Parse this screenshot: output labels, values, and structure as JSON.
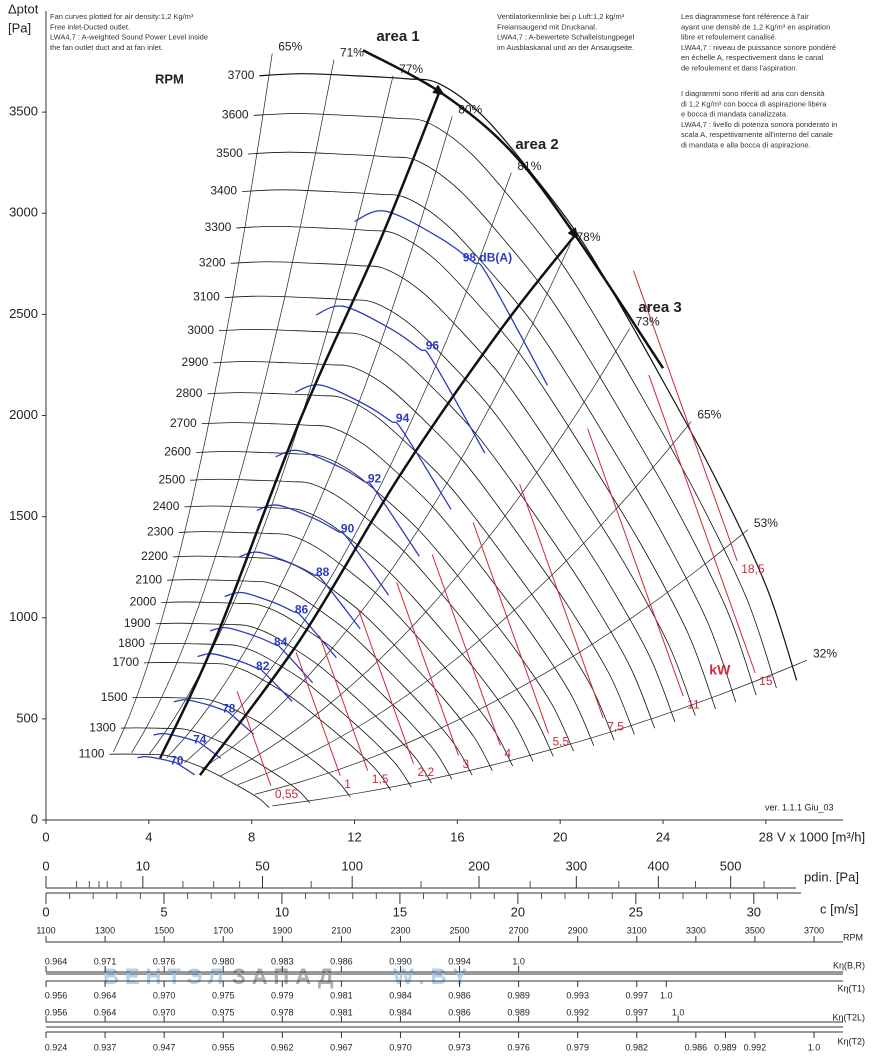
{
  "chart_data": {
    "type": "line",
    "y_label": "Δptot",
    "y_unit": "[Pa]",
    "x_label": "V x 1000 [m³/h]",
    "xlim": [
      0,
      31
    ],
    "xticks": [
      0,
      4,
      8,
      12,
      16,
      20,
      24,
      28
    ],
    "ylim": [
      0,
      4000
    ],
    "yticks": [
      0,
      500,
      1000,
      1500,
      2000,
      2500,
      3000,
      3500
    ],
    "rpm_title": "RPM",
    "rpm": [
      1100,
      1300,
      1500,
      1700,
      1800,
      1900,
      2000,
      2100,
      2200,
      2300,
      2400,
      2500,
      2600,
      2700,
      2800,
      2900,
      3000,
      3100,
      3200,
      3300,
      3400,
      3500,
      3600,
      3700
    ],
    "base_curve": {
      "x": [
        8.3,
        10,
        12,
        14,
        15.3,
        17,
        19,
        20.6,
        22,
        24,
        26,
        28,
        29.2
      ],
      "values": [
        3680,
        3690,
        3680,
        3665,
        3640,
        3480,
        3180,
        2910,
        2620,
        2170,
        1700,
        1160,
        690
      ]
    },
    "efficiency": {
      "labels": [
        "65%",
        "71%",
        "77%",
        "80%",
        "81%",
        "78%",
        "73%",
        "65%",
        "53%",
        "32%"
      ],
      "x": [
        8.8,
        11.2,
        13.5,
        15.8,
        18.1,
        20.4,
        22.7,
        25.1,
        27.3,
        29.6
      ],
      "y": [
        3790,
        3760,
        3680,
        3480,
        3200,
        2850,
        2430,
        1970,
        1435,
        790
      ]
    },
    "sound": {
      "color": "#2a3cc0",
      "labels": [
        "98 dB(A)",
        "96",
        "94",
        "92",
        "90",
        "88",
        "86",
        "84",
        "82",
        "78",
        "74",
        "70"
      ],
      "x": [
        17.17,
        15.03,
        13.87,
        12.78,
        11.73,
        10.76,
        9.94,
        9.13,
        8.43,
        7.11,
        5.98,
        5.09
      ],
      "y": [
        2777,
        2343,
        1984,
        1685,
        1436,
        1221,
        1037,
        877,
        758,
        548,
        394,
        289
      ]
    },
    "power": {
      "color": "#cc2a3a",
      "title": "kW",
      "labels": [
        "0,55",
        "1",
        "1,5",
        "2,2",
        "3",
        "4",
        "5,5",
        "7,5",
        "11",
        "15",
        "18,5"
      ],
      "x": [
        8.9,
        11.6,
        12.67,
        14.45,
        16.2,
        17.83,
        19.7,
        21.83,
        24.94,
        27.74,
        27.04
      ],
      "y": [
        125,
        174,
        199,
        234,
        274,
        324,
        384,
        459,
        568,
        683,
        1236
      ],
      "title_x": 25.8,
      "title_y": 738
    },
    "area_curves": [
      {
        "x": [
          4.44,
          6.58,
          9.88,
          13.0,
          15.33
        ],
        "values": [
          306,
          890,
          1977,
          2867,
          3609
        ]
      },
      {
        "x": [
          5.99,
          9.88,
          13.77,
          17.67,
          20.58
        ],
        "values": [
          222,
          890,
          1705,
          2422,
          2892
        ]
      },
      {
        "x": [
          12.33,
          15.33,
          18.05,
          20.58,
          24.0
        ],
        "values": [
          3806,
          3599,
          3312,
          2892,
          2234
        ]
      }
    ],
    "area_labels": [
      "area 1",
      "area 2",
      "area 3"
    ],
    "notes": [
      [
        "Fan curves plotted for air density:1,2 Kg/m³",
        "Free inlet-Ducted outlet.",
        "LWA4,7 : A-weighted Sound Power Level inside",
        "the fan outlet duct and at fan inlet."
      ],
      [
        "Ventilatorkennlinie bei ρ Luft:1,2 kg/m³",
        "Freiansaugend mit Druckanal.",
        "LWA4,7 : A-bewertete Schalleistungpegel",
        "im Ausblaskanal und an der Ansaugseite."
      ],
      [
        "Les diagrammese font référence à l'air",
        "ayant une densité de 1,2 Kg/m³ en aspiration",
        "libre et refoulement canalisé.",
        "LWA4,7 : niveau de puissance sonore pondéré",
        "en échelle A, respectivement dans le canal",
        "de refoulement et dans l'aspiration."
      ],
      [
        "I diagrammi sono riferiti ad aria con densità",
        "di 1,2 Kg/m³ con bocca di aspirazione libera",
        "e bocca di mandata canalizzata.",
        "LWA4,7 : livello di potenza sonora ponderato in",
        "scala A, respettivamente all'interno del canale",
        "di mandata e alla bocca di aspirazione."
      ]
    ],
    "version": "ver. 1.1.1 Giu_03",
    "pdin": {
      "label": "pdin. [Pa]",
      "scale": "sqrt",
      "lim": [
        0,
        600
      ],
      "ticks": [
        0,
        10,
        50,
        100,
        200,
        300,
        400,
        500
      ],
      "minor_ticks": [
        1,
        2,
        3,
        4,
        6,
        20,
        30,
        40,
        75,
        150,
        250,
        350,
        450,
        550
      ]
    },
    "c": {
      "label": "c [m/s]",
      "lim": [
        0,
        32
      ],
      "ticks": [
        0,
        5,
        10,
        15,
        20,
        25,
        30
      ],
      "minor_ticks": [
        1,
        2,
        3,
        4,
        6,
        7,
        8,
        9,
        11,
        12,
        13,
        14,
        16,
        17,
        18,
        19,
        21,
        22,
        23,
        24,
        26,
        27,
        28,
        29,
        31
      ]
    },
    "rpm_row": {
      "name": "RPM",
      "values": [
        1100,
        1300,
        1500,
        1700,
        1900,
        2100,
        2300,
        2500,
        2700,
        2900,
        3100,
        3300,
        3500,
        3700
      ]
    },
    "k_rows": [
      {
        "name": "Kη(B,R)",
        "rpm": [
          1100,
          1300,
          1500,
          1700,
          1900,
          2100,
          2300,
          2500,
          2700
        ],
        "values": [
          0.964,
          0.971,
          0.976,
          0.98,
          0.983,
          0.986,
          0.99,
          0.994,
          1.0
        ],
        "value_labels": [
          "0.964",
          "0.971",
          "0.976",
          "0.980",
          "0.983",
          "0.986",
          "0.990",
          "0.994",
          "1.0"
        ]
      },
      {
        "name": "Kη(T1)",
        "rpm": [
          1100,
          1300,
          1500,
          1700,
          1900,
          2100,
          2300,
          2500,
          2700,
          2900,
          3100,
          3200
        ],
        "values": [
          0.956,
          0.964,
          0.97,
          0.975,
          0.979,
          0.981,
          0.984,
          0.986,
          0.989,
          0.993,
          0.997,
          1.0
        ],
        "value_labels": [
          "0.956",
          "0.964",
          "0.970",
          "0.975",
          "0.979",
          "0.981",
          "0.984",
          "0.986",
          "0.989",
          "0.993",
          "0.997",
          "1.0"
        ]
      },
      {
        "name": "Kη(T2L)",
        "rpm": [
          1100,
          1300,
          1500,
          1700,
          1900,
          2100,
          2300,
          2500,
          2700,
          2900,
          3100,
          3240
        ],
        "values": [
          0.956,
          0.964,
          0.97,
          0.975,
          0.978,
          0.981,
          0.984,
          0.986,
          0.989,
          0.992,
          0.997,
          1.0
        ],
        "value_labels": [
          "0.956",
          "0.964",
          "0.970",
          "0.975",
          "0.978",
          "0.981",
          "0.984",
          "0.986",
          "0.989",
          "0.992",
          "0.997",
          "1.0"
        ]
      },
      {
        "name": "Kη(T2)",
        "rpm": [
          1100,
          1300,
          1500,
          1700,
          1900,
          2100,
          2300,
          2500,
          2700,
          2900,
          3100,
          3300,
          3400,
          3500,
          3700
        ],
        "values": [
          0.924,
          0.937,
          0.947,
          0.955,
          0.962,
          0.967,
          0.97,
          0.973,
          0.976,
          0.979,
          0.982,
          0.986,
          0.989,
          0.992,
          1.0
        ],
        "value_labels": [
          "0.924",
          "0.937",
          "0.947",
          "0.955",
          "0.962",
          "0.967",
          "0.970",
          "0.973",
          "0.976",
          "0.979",
          "0.982",
          "0.986",
          "0.989",
          "0.992",
          "1.0"
        ]
      }
    ],
    "watermark": [
      "ВЕНТЭЛ",
      "ЗАПАД",
      "W.BY"
    ]
  }
}
